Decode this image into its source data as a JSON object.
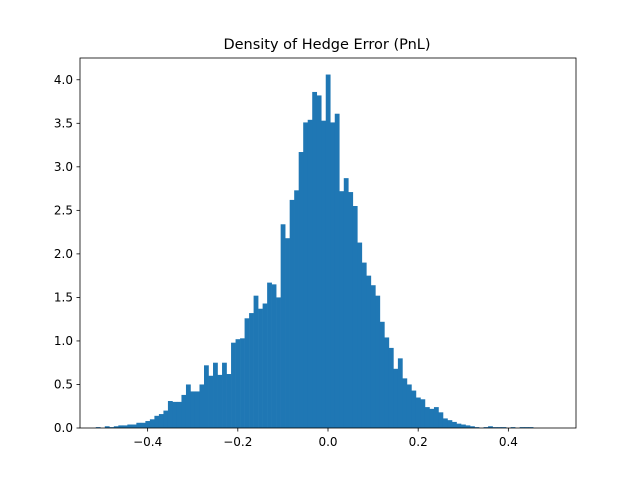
{
  "chart_data": {
    "type": "bar",
    "title": "Density of Hedge Error (PnL)",
    "xlabel": "",
    "ylabel": "",
    "xlim": [
      -0.55,
      0.55
    ],
    "ylim": [
      0,
      4.25
    ],
    "grid": false,
    "bar_color": "#1f77b4",
    "x_ticks": [
      -0.4,
      -0.2,
      0.0,
      0.2,
      0.4
    ],
    "x_tick_labels": [
      "−0.4",
      "−0.2",
      "0.0",
      "0.2",
      "0.4"
    ],
    "y_ticks": [
      0.0,
      0.5,
      1.0,
      1.5,
      2.0,
      2.5,
      3.0,
      3.5,
      4.0
    ],
    "y_tick_labels": [
      "0.0",
      "0.5",
      "1.0",
      "1.5",
      "2.0",
      "2.5",
      "3.0",
      "3.5",
      "4.0"
    ],
    "bin_start": -0.515,
    "bin_width": 0.01,
    "densities": [
      0.01,
      0.0,
      0.02,
      0.01,
      0.02,
      0.03,
      0.03,
      0.04,
      0.04,
      0.06,
      0.06,
      0.08,
      0.1,
      0.14,
      0.16,
      0.2,
      0.31,
      0.3,
      0.3,
      0.38,
      0.5,
      0.42,
      0.42,
      0.5,
      0.72,
      0.6,
      0.75,
      0.61,
      0.75,
      0.62,
      0.98,
      1.02,
      1.03,
      1.26,
      1.32,
      1.52,
      1.37,
      1.43,
      1.67,
      1.65,
      1.5,
      2.34,
      2.18,
      2.62,
      2.73,
      3.17,
      3.51,
      3.54,
      3.86,
      3.82,
      3.53,
      4.06,
      3.51,
      3.61,
      2.72,
      2.87,
      2.71,
      2.55,
      2.13,
      1.9,
      1.75,
      1.64,
      1.52,
      1.22,
      1.04,
      0.92,
      0.68,
      0.8,
      0.57,
      0.5,
      0.43,
      0.35,
      0.33,
      0.24,
      0.22,
      0.24,
      0.18,
      0.11,
      0.09,
      0.07,
      0.05,
      0.04,
      0.03,
      0.02,
      0.01,
      0.0,
      0.01,
      0.02,
      0.01,
      0.01,
      0.01,
      0.0,
      0.01,
      0.0,
      0.01,
      0.01,
      0.01
    ]
  }
}
